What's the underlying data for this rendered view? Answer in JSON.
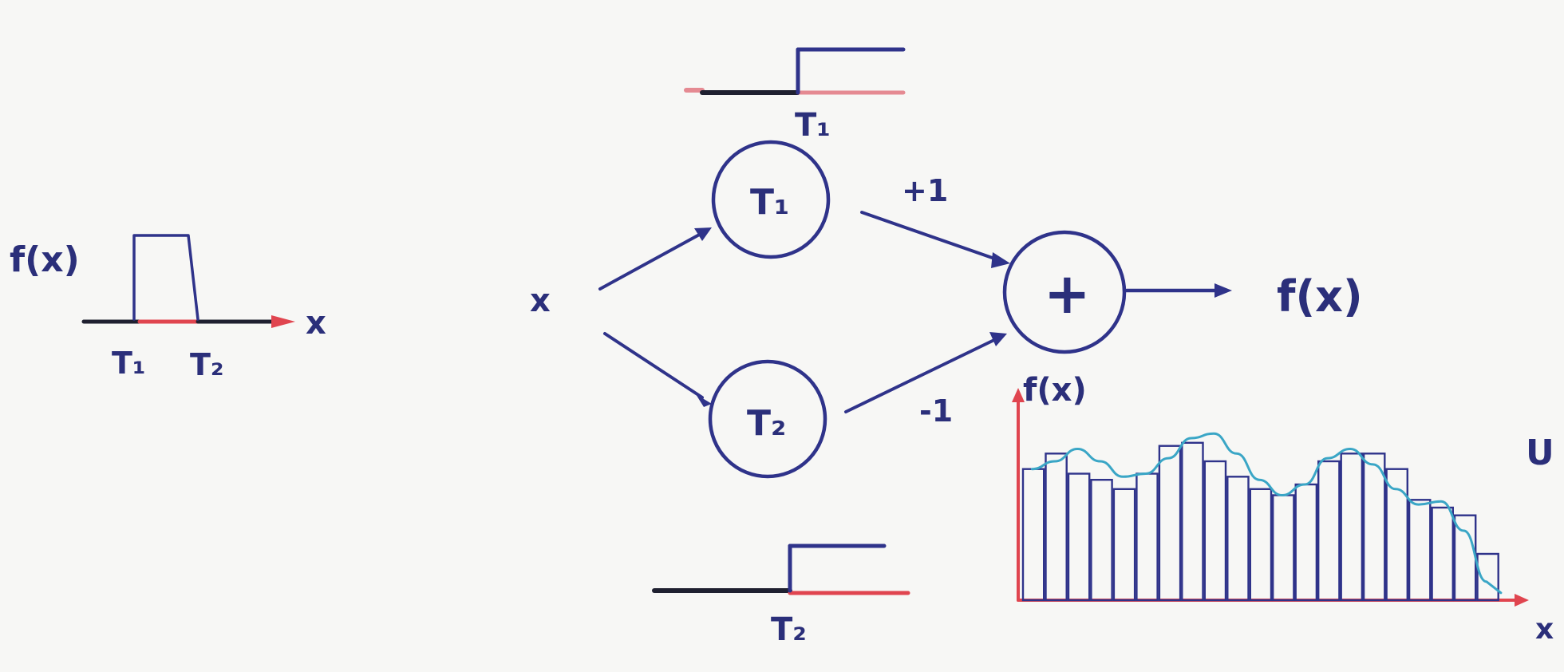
{
  "left_plot": {
    "ylabel": "f(x)",
    "xlabel": "x",
    "ticks": [
      "T₁",
      "T₂"
    ]
  },
  "network": {
    "input": "x",
    "node_top": "T₁",
    "node_bottom": "T₂",
    "sum_symbol": "+",
    "weight_top": "+1",
    "weight_bottom": "-1",
    "output": "f(x)"
  },
  "step_top": {
    "label": "T₁"
  },
  "step_bottom": {
    "label": "T₂"
  },
  "chart_data": {
    "type": "bar",
    "title": "",
    "ylabel": "f(x)",
    "xlabel": "x",
    "values": [
      0.85,
      0.95,
      0.82,
      0.78,
      0.72,
      0.82,
      1.0,
      1.02,
      0.9,
      0.8,
      0.72,
      0.68,
      0.75,
      0.9,
      0.95,
      0.95,
      0.85,
      0.65,
      0.6,
      0.55,
      0.3
    ],
    "curve": [
      0.85,
      0.9,
      0.98,
      0.9,
      0.8,
      0.82,
      0.92,
      1.05,
      1.08,
      0.95,
      0.78,
      0.68,
      0.75,
      0.92,
      0.98,
      0.88,
      0.72,
      0.62,
      0.64,
      0.45,
      0.12
    ],
    "ylim": [
      0,
      1.2
    ],
    "cut_label": "U"
  }
}
